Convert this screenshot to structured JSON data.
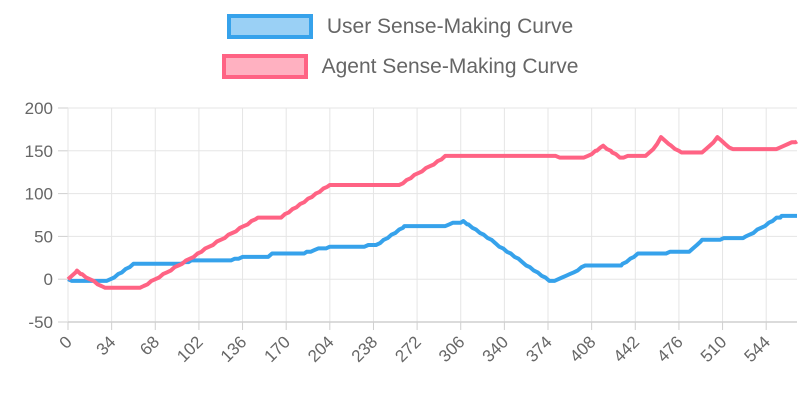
{
  "legend": {
    "items": [
      {
        "label": "User Sense-Making Curve",
        "color": "#36A2EB",
        "fill": "#9AD0F5"
      },
      {
        "label": "Agent Sense-Making Curve",
        "color": "#FF6384",
        "fill": "#FFB1C1"
      }
    ]
  },
  "chart_data": {
    "type": "line",
    "title": "",
    "xlabel": "",
    "ylabel": "",
    "legend_position": "top",
    "grid": true,
    "x_axis": {
      "min": 0,
      "max": 568,
      "tick_labels": [
        0,
        34,
        68,
        102,
        136,
        170,
        204,
        238,
        272,
        306,
        340,
        374,
        408,
        442,
        476,
        510,
        544
      ],
      "label_rotation_deg": -45
    },
    "y_axis": {
      "min": -50,
      "max": 200,
      "tick_labels": [
        200,
        150,
        100,
        50,
        0,
        -50
      ]
    },
    "series": [
      {
        "name": "User Sense-Making Curve",
        "color": "#36A2EB",
        "line_width": 4,
        "points": [
          [
            0,
            0
          ],
          [
            4,
            -3
          ],
          [
            30,
            -3
          ],
          [
            52,
            18
          ],
          [
            88,
            18
          ],
          [
            96,
            21
          ],
          [
            100,
            22
          ],
          [
            130,
            23
          ],
          [
            136,
            25
          ],
          [
            156,
            26
          ],
          [
            160,
            30
          ],
          [
            186,
            31
          ],
          [
            192,
            34
          ],
          [
            198,
            36
          ],
          [
            204,
            37
          ],
          [
            234,
            39
          ],
          [
            240,
            40
          ],
          [
            262,
            61
          ],
          [
            294,
            62
          ],
          [
            300,
            66
          ],
          [
            308,
            67
          ],
          [
            312,
            64
          ],
          [
            376,
            -3
          ],
          [
            382,
            0
          ],
          [
            404,
            16
          ],
          [
            432,
            17
          ],
          [
            438,
            24
          ],
          [
            444,
            29
          ],
          [
            466,
            30
          ],
          [
            470,
            32
          ],
          [
            484,
            32
          ],
          [
            490,
            40
          ],
          [
            494,
            45
          ],
          [
            508,
            46
          ],
          [
            514,
            48
          ],
          [
            528,
            49
          ],
          [
            552,
            71
          ],
          [
            556,
            73
          ],
          [
            568,
            74
          ]
        ]
      },
      {
        "name": "Agent Sense-Making Curve",
        "color": "#FF6384",
        "line_width": 4,
        "points": [
          [
            0,
            0
          ],
          [
            3,
            4
          ],
          [
            7,
            9
          ],
          [
            11,
            5
          ],
          [
            20,
            -3
          ],
          [
            30,
            -10
          ],
          [
            36,
            -11
          ],
          [
            56,
            -11
          ],
          [
            148,
            72
          ],
          [
            166,
            72
          ],
          [
            204,
            110
          ],
          [
            258,
            110
          ],
          [
            294,
            143
          ],
          [
            298,
            144
          ],
          [
            380,
            144
          ],
          [
            388,
            141
          ],
          [
            402,
            141
          ],
          [
            412,
            150
          ],
          [
            417,
            156
          ],
          [
            424,
            148
          ],
          [
            430,
            142
          ],
          [
            436,
            143
          ],
          [
            450,
            144
          ],
          [
            456,
            152
          ],
          [
            462,
            165
          ],
          [
            470,
            155
          ],
          [
            478,
            147
          ],
          [
            494,
            147
          ],
          [
            500,
            156
          ],
          [
            506,
            165
          ],
          [
            512,
            157
          ],
          [
            518,
            152
          ],
          [
            552,
            152
          ],
          [
            564,
            160
          ],
          [
            568,
            161
          ]
        ]
      }
    ],
    "style": {
      "grid_color": "#e5e5e5",
      "axis_border_color": "#cfcfcf",
      "tick_text_color": "#666666",
      "tick_font_size_px": 17
    }
  }
}
